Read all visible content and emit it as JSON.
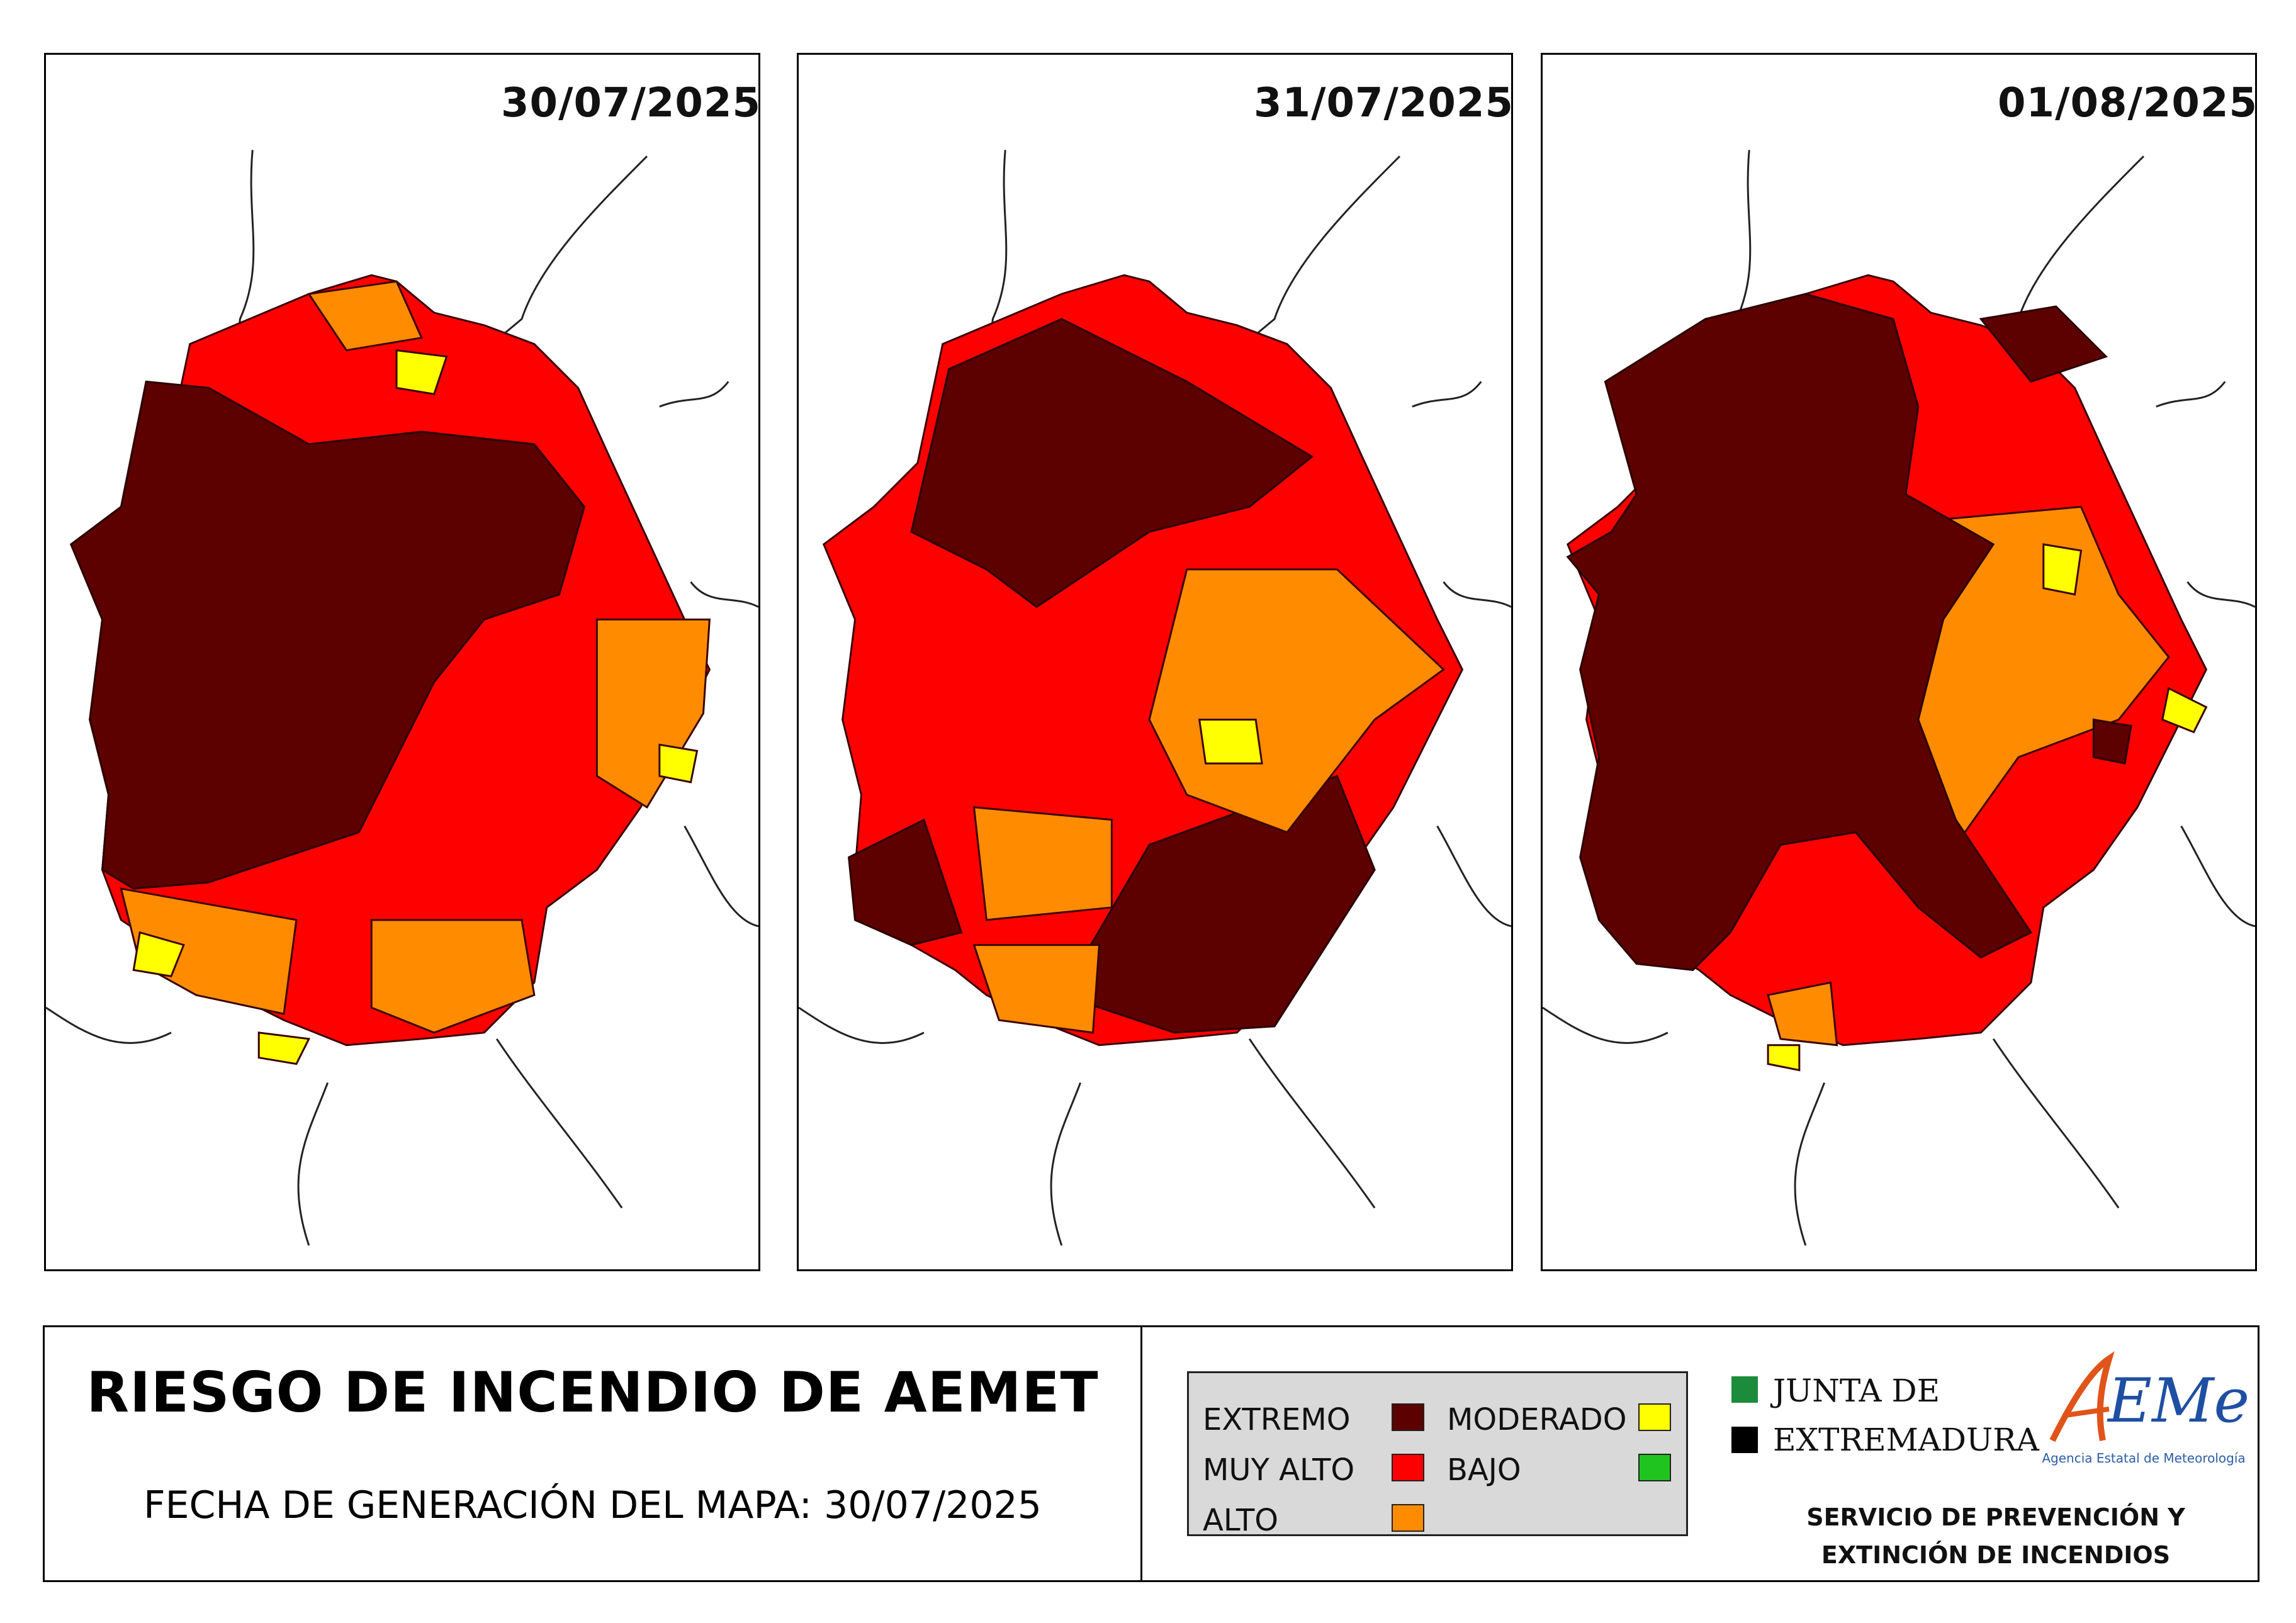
{
  "maps": [
    {
      "date": "30/07/2025",
      "dominant_risk": "EXTREMO"
    },
    {
      "date": "31/07/2025",
      "dominant_risk": "MUY ALTO"
    },
    {
      "date": "01/08/2025",
      "dominant_risk": "EXTREMO"
    }
  ],
  "footer": {
    "title": "RIESGO DE INCENDIO DE AEMET",
    "generation": "FECHA DE GENERACIÓN DEL MAPA: 30/07/2025"
  },
  "legend": {
    "items": [
      {
        "label": "EXTREMO",
        "color": "#5c0000"
      },
      {
        "label": "MUY ALTO",
        "color": "#ff0000"
      },
      {
        "label": "ALTO",
        "color": "#ff8c00"
      },
      {
        "label": "MODERADO",
        "color": "#ffff00"
      },
      {
        "label": "BAJO",
        "color": "#1fc41f"
      }
    ]
  },
  "junta": {
    "line1": "JUNTA DE",
    "line2": "EXTREMADURA",
    "colors": {
      "green": "#1c8c3c",
      "black": "#000000"
    }
  },
  "aemet": {
    "logo_text": "AEMet",
    "tagline": "Agencia Estatal de Meteorología",
    "colors": {
      "a": "#e0541a",
      "e": "#1f4fa3"
    }
  },
  "service": {
    "line1": "SERVICIO DE PREVENCIÓN Y",
    "line2": "EXTINCIÓN DE INCENDIOS"
  }
}
